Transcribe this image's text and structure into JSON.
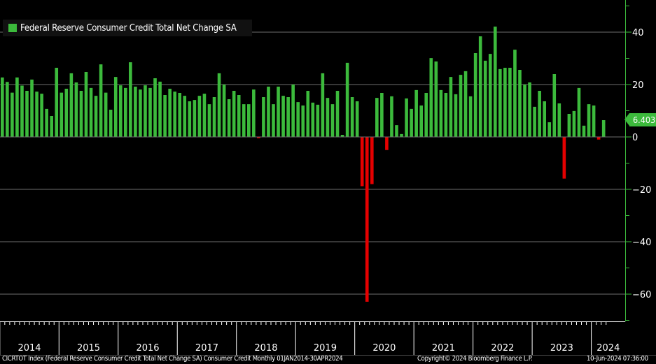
{
  "chart_data": {
    "type": "bar",
    "title": "",
    "legend": {
      "label": "Federal Reserve Consumer Credit Total Net Change SA",
      "placement": "top-left"
    },
    "frequency": "monthly",
    "start": "2014-01",
    "end": "2024-04",
    "year_labels": [
      "2014",
      "2015",
      "2016",
      "2017",
      "2018",
      "2019",
      "2020",
      "2021",
      "2022",
      "2023",
      "2024"
    ],
    "yticks": [
      40,
      20,
      0,
      -20,
      -40,
      -60
    ],
    "ylim": [
      -70.4,
      52
    ],
    "grid": true,
    "last_value": "6.403",
    "colors": {
      "positive": "#3cba3c",
      "negative": "#e50000",
      "grid": "#6e6e6e",
      "axis": "#3cba3c",
      "background": "#000000"
    },
    "values": [
      22.7,
      21.0,
      16.9,
      22.7,
      19.6,
      17.6,
      21.9,
      17.3,
      16.5,
      10.7,
      8.0,
      26.4,
      16.9,
      18.4,
      24.3,
      20.8,
      17.6,
      24.8,
      18.7,
      15.7,
      27.7,
      16.9,
      10.4,
      22.9,
      19.7,
      18.7,
      28.5,
      19.2,
      18.1,
      19.7,
      18.7,
      22.4,
      21.1,
      16.0,
      18.4,
      17.3,
      16.8,
      15.7,
      13.6,
      14.1,
      15.7,
      16.5,
      12.5,
      15.2,
      24.3,
      20.0,
      14.4,
      17.6,
      16.0,
      12.5,
      12.5,
      18.1,
      -0.5,
      15.2,
      19.2,
      12.5,
      19.2,
      15.7,
      15.2,
      20.0,
      13.3,
      12.0,
      17.6,
      13.1,
      12.3,
      24.3,
      14.9,
      12.5,
      17.6,
      0.8,
      28.3,
      15.2,
      13.6,
      -18.8,
      -62.9,
      -18.0,
      14.9,
      16.8,
      -5.0,
      15.5,
      4.5,
      1.1,
      14.7,
      10.7,
      17.9,
      12.0,
      16.8,
      30.1,
      28.8,
      17.9,
      16.8,
      22.9,
      16.3,
      23.7,
      25.1,
      15.5,
      32.0,
      38.4,
      29.1,
      31.7,
      42.1,
      25.9,
      26.4,
      26.4,
      33.3,
      25.6,
      20.0,
      20.8,
      11.5,
      17.6,
      13.6,
      5.6,
      24.0,
      12.8,
      -15.9,
      8.8,
      9.9,
      18.7,
      4.3,
      12.5,
      12.0,
      -1.0,
      6.403
    ]
  },
  "footer": {
    "source": "CICRTOT Index (Federal Reserve Consumer Credit Total Net Change SA) Consumer Credit  Monthly 01JAN2014-30APR2024",
    "copyright": "Copyright© 2024 Bloomberg Finance L.P.",
    "timestamp": "10-Jun-2024 07:36:00"
  }
}
